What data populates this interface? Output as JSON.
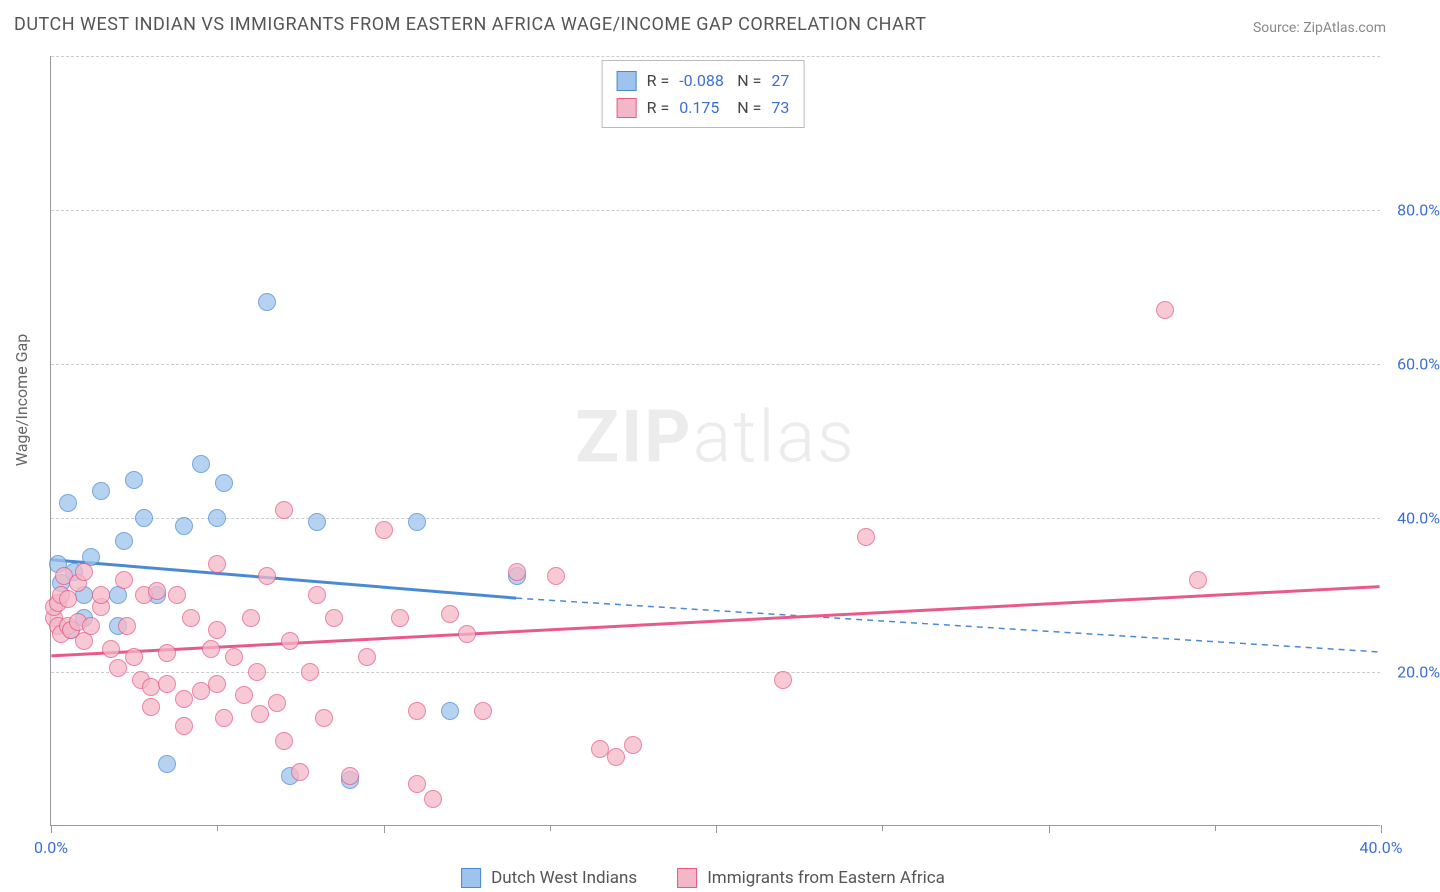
{
  "title": "DUTCH WEST INDIAN VS IMMIGRANTS FROM EASTERN AFRICA WAGE/INCOME GAP CORRELATION CHART",
  "source": "Source: ZipAtlas.com",
  "y_axis_label": "Wage/Income Gap",
  "watermark_zip": "ZIP",
  "watermark_atlas": "atlas",
  "chart": {
    "type": "scatter",
    "xlim": [
      0,
      40
    ],
    "ylim": [
      0,
      100
    ],
    "x_ticks": [
      0,
      10,
      20,
      30,
      40
    ],
    "x_tick_labels": [
      "0.0%",
      "",
      "",
      "",
      "40.0%"
    ],
    "y_gridlines": [
      20,
      40,
      60,
      80,
      100
    ],
    "y_tick_labels": [
      "20.0%",
      "40.0%",
      "60.0%",
      "80.0%",
      ""
    ],
    "background_color": "#ffffff",
    "grid_color": "#cccccc",
    "axis_color": "#999999",
    "x_minor_ticks": [
      5,
      15,
      25,
      35
    ],
    "marker_radius": 9,
    "marker_opacity_fill": 0.35,
    "marker_opacity_stroke": 0.9,
    "series": [
      {
        "name": "Dutch West Indians",
        "color_fill": "#9ec3ed",
        "color_stroke": "#4a8ad4",
        "correlation_r": "-0.088",
        "correlation_n": "27",
        "trend": {
          "y_start": 34.5,
          "y_at_mid": 29.5,
          "y_end": 22.5,
          "data_xmax": 14,
          "dash_after": true,
          "stroke_width": 3
        },
        "points": [
          [
            0.2,
            34
          ],
          [
            0.3,
            31.5
          ],
          [
            0.5,
            42
          ],
          [
            0.7,
            33
          ],
          [
            1.0,
            30
          ],
          [
            1.0,
            27
          ],
          [
            0.6,
            25.5
          ],
          [
            1.2,
            35
          ],
          [
            1.5,
            43.5
          ],
          [
            2.0,
            30
          ],
          [
            2.2,
            37
          ],
          [
            2.5,
            45
          ],
          [
            2.0,
            26
          ],
          [
            2.8,
            40
          ],
          [
            3.2,
            30
          ],
          [
            3.5,
            8
          ],
          [
            4.0,
            39
          ],
          [
            4.5,
            47
          ],
          [
            5.0,
            40
          ],
          [
            5.2,
            44.5
          ],
          [
            6.5,
            68
          ],
          [
            7.2,
            6.5
          ],
          [
            8.0,
            39.5
          ],
          [
            9.0,
            6
          ],
          [
            11.0,
            39.5
          ],
          [
            12.0,
            15
          ],
          [
            14.0,
            32.5
          ]
        ]
      },
      {
        "name": "Immigrants from Eastern Africa",
        "color_fill": "#f4b7c7",
        "color_stroke": "#e75a8a",
        "correlation_r": "0.175",
        "correlation_n": "73",
        "trend": {
          "y_start": 22,
          "y_end": 31,
          "dash_after": false,
          "stroke_width": 3
        },
        "points": [
          [
            0.1,
            27
          ],
          [
            0.1,
            28.5
          ],
          [
            0.2,
            26
          ],
          [
            0.2,
            29
          ],
          [
            0.3,
            25
          ],
          [
            0.3,
            30
          ],
          [
            0.4,
            32.5
          ],
          [
            0.5,
            26
          ],
          [
            0.5,
            29.5
          ],
          [
            0.6,
            25.5
          ],
          [
            0.8,
            26.5
          ],
          [
            0.8,
            31.5
          ],
          [
            1.0,
            24
          ],
          [
            1.0,
            33
          ],
          [
            1.2,
            26
          ],
          [
            1.5,
            28.5
          ],
          [
            1.5,
            30
          ],
          [
            1.8,
            23
          ],
          [
            2.0,
            20.5
          ],
          [
            2.2,
            32
          ],
          [
            2.3,
            26
          ],
          [
            2.5,
            22
          ],
          [
            2.7,
            19
          ],
          [
            2.8,
            30
          ],
          [
            3.0,
            18
          ],
          [
            3.0,
            15.5
          ],
          [
            3.2,
            30.5
          ],
          [
            3.5,
            22.5
          ],
          [
            3.5,
            18.5
          ],
          [
            3.8,
            30
          ],
          [
            4.0,
            16.5
          ],
          [
            4.0,
            13
          ],
          [
            4.2,
            27
          ],
          [
            4.5,
            17.5
          ],
          [
            4.8,
            23
          ],
          [
            5.0,
            25.5
          ],
          [
            5.0,
            18.5
          ],
          [
            5.0,
            34
          ],
          [
            5.2,
            14
          ],
          [
            5.5,
            22
          ],
          [
            5.8,
            17
          ],
          [
            6.0,
            27
          ],
          [
            6.2,
            20
          ],
          [
            6.3,
            14.5
          ],
          [
            6.5,
            32.5
          ],
          [
            6.8,
            16
          ],
          [
            7.0,
            41
          ],
          [
            7.0,
            11
          ],
          [
            7.2,
            24
          ],
          [
            7.5,
            7
          ],
          [
            7.8,
            20
          ],
          [
            8.0,
            30
          ],
          [
            8.2,
            14
          ],
          [
            8.5,
            27
          ],
          [
            9.0,
            6.5
          ],
          [
            9.5,
            22
          ],
          [
            10.0,
            38.5
          ],
          [
            10.5,
            27
          ],
          [
            11.0,
            15
          ],
          [
            11.0,
            5.5
          ],
          [
            11.5,
            3.5
          ],
          [
            12.0,
            27.5
          ],
          [
            12.5,
            25
          ],
          [
            13.0,
            15
          ],
          [
            14.0,
            33
          ],
          [
            15.2,
            32.5
          ],
          [
            16.5,
            10
          ],
          [
            17.0,
            9
          ],
          [
            17.5,
            10.5
          ],
          [
            22.0,
            19
          ],
          [
            24.5,
            37.5
          ],
          [
            33.5,
            67
          ],
          [
            34.5,
            32
          ]
        ]
      }
    ]
  },
  "legend_top": {
    "r_label": "R =",
    "n_label": "N ="
  }
}
